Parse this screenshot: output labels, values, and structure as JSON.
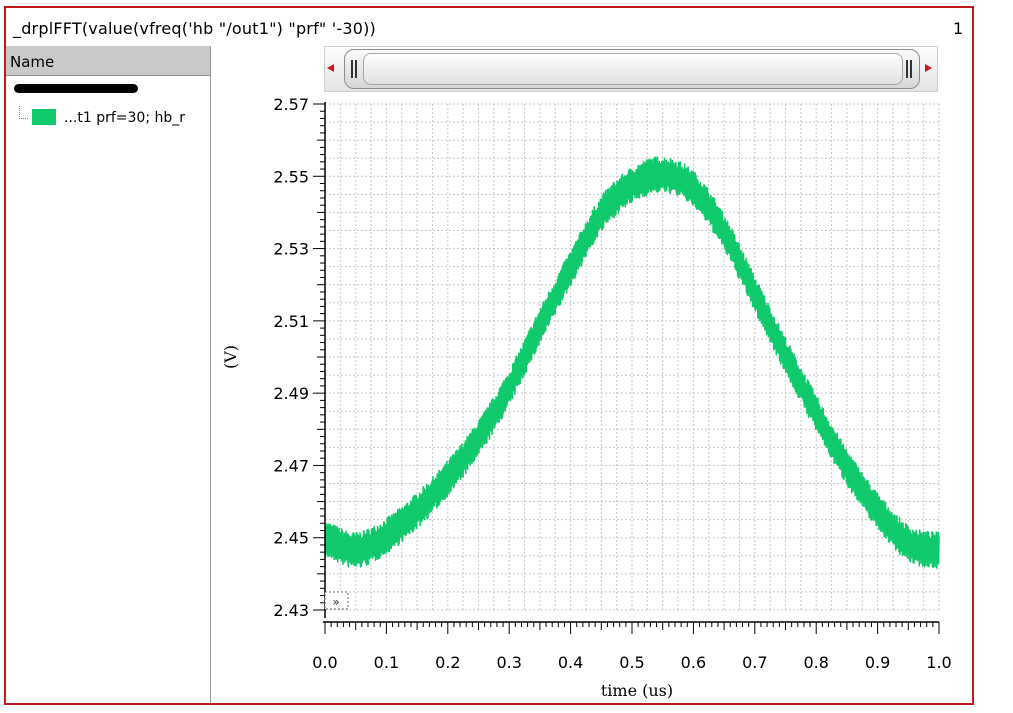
{
  "window": {
    "title": "_drplFFT(value(vfreq('hb \"/out1\") \"prf\" '-30))",
    "subwindow_number": "1"
  },
  "browser": {
    "header": "Name",
    "trace_label": "...t1 prf=30; hb_r",
    "trace_color": "#11c96d"
  },
  "zoom_button": "»",
  "chart_data": {
    "type": "line",
    "title": "_drplFFT(value(vfreq('hb \"/out1\") \"prf\" '-30))",
    "xlabel": "time (us)",
    "ylabel": "(V)",
    "xlim": [
      0.0,
      1.0
    ],
    "ylim": [
      2.43,
      2.57
    ],
    "x_ticks": [
      "0.0",
      "0.1",
      "0.2",
      "0.3",
      "0.4",
      "0.5",
      "0.6",
      "0.7",
      "0.8",
      "0.9",
      "1.0"
    ],
    "y_ticks": [
      "2.43",
      "2.45",
      "2.47",
      "2.49",
      "2.51",
      "2.53",
      "2.55",
      "2.57"
    ],
    "grid": true,
    "series": [
      {
        "color": "#11c96d",
        "ripple_amplitude": 0.005,
        "x": [
          0.0,
          0.05,
          0.1,
          0.15,
          0.2,
          0.25,
          0.3,
          0.35,
          0.4,
          0.45,
          0.5,
          0.55,
          0.6,
          0.65,
          0.7,
          0.75,
          0.8,
          0.85,
          0.9,
          0.95,
          1.0
        ],
        "values": [
          2.4495,
          2.4465,
          2.4505,
          2.4575,
          2.4665,
          2.4775,
          2.4915,
          2.5085,
          2.5245,
          2.5395,
          2.5475,
          2.5505,
          2.5465,
          2.5345,
          2.5175,
          2.5005,
          2.4845,
          2.4695,
          2.4575,
          2.4485,
          2.4465
        ]
      }
    ]
  }
}
